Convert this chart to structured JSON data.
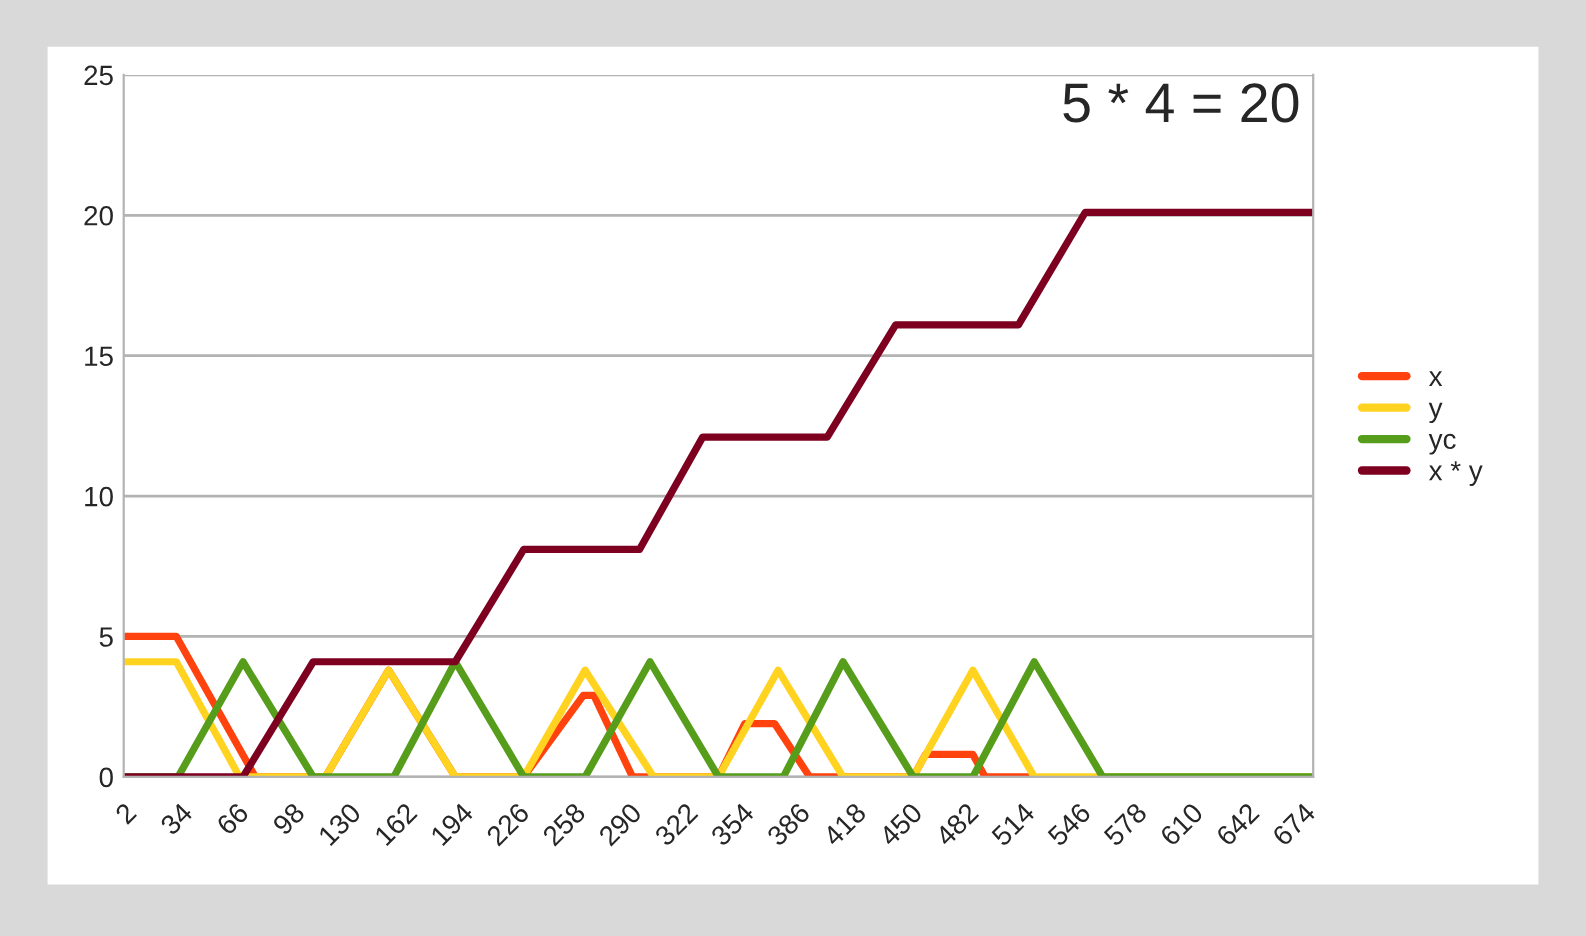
{
  "chart_data": {
    "type": "line",
    "xlim": [
      2,
      680
    ],
    "xticks": [
      2,
      34,
      66,
      98,
      130,
      162,
      194,
      226,
      258,
      290,
      322,
      354,
      386,
      418,
      450,
      482,
      514,
      546,
      578,
      610,
      642,
      674
    ],
    "ylim": [
      0,
      25
    ],
    "yticks": [
      0,
      5,
      10,
      15,
      20,
      25
    ],
    "grid": "y",
    "legend": "right",
    "marker": "none",
    "line_style": "solid",
    "annotations": [
      "5 * 4 = 20"
    ],
    "series": [
      {
        "name": "x",
        "color": "#ff420e",
        "x": [
          2,
          32,
          77,
          117,
          153,
          191,
          230,
          264,
          270,
          292,
          341,
          356,
          373,
          393,
          452,
          459,
          486,
          493,
          520
        ],
        "values": [
          5,
          5,
          0,
          0,
          3.8,
          0,
          0,
          2.9,
          2.9,
          0,
          0,
          1.9,
          1.9,
          0,
          0,
          0.8,
          0.8,
          0,
          0
        ]
      },
      {
        "name": "y",
        "color": "#ffd320",
        "x": [
          2,
          32,
          68,
          117,
          153,
          191,
          230,
          265,
          304,
          341,
          375,
          412,
          452,
          486,
          521,
          680
        ],
        "values": [
          4.1,
          4.1,
          0,
          0,
          3.8,
          0,
          0,
          3.8,
          0,
          0,
          3.8,
          0,
          0,
          3.8,
          0,
          0
        ]
      },
      {
        "name": "yc",
        "color": "#579d1c",
        "x": [
          2,
          33,
          70,
          110,
          156,
          191,
          230,
          265,
          302,
          341,
          378,
          412,
          452,
          486,
          521,
          560,
          680
        ],
        "values": [
          0,
          0,
          4.1,
          0,
          0,
          4.1,
          0,
          0,
          4.1,
          0,
          0,
          4.1,
          0,
          0,
          4.1,
          0,
          0
        ]
      },
      {
        "name": "x * y",
        "color": "#7e0021",
        "x": [
          2,
          70,
          110,
          191,
          230,
          296,
          332,
          403,
          442,
          512,
          550,
          680
        ],
        "values": [
          0,
          0,
          4.1,
          4.1,
          8.1,
          8.1,
          12.1,
          12.1,
          16.1,
          16.1,
          20.1,
          20.1
        ]
      }
    ]
  }
}
